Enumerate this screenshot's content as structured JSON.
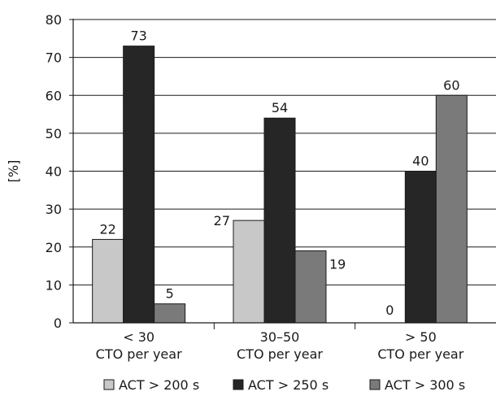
{
  "chart_data": {
    "type": "bar",
    "categories": [
      [
        "< 30",
        "CTO per year"
      ],
      [
        "30–50",
        "CTO per year"
      ],
      [
        "> 50",
        "CTO per year"
      ]
    ],
    "series": [
      {
        "name": "ACT > 200 s",
        "values": [
          22,
          27,
          0
        ],
        "color": "#c8c8c8"
      },
      {
        "name": "ACT > 250 s",
        "values": [
          73,
          54,
          40
        ],
        "color": "#262626"
      },
      {
        "name": "ACT > 300 s",
        "values": [
          5,
          19,
          60
        ],
        "color": "#7a7a7a"
      }
    ],
    "ylabel": "[%]",
    "ylim": [
      0,
      80
    ],
    "yticks": [
      0,
      10,
      20,
      30,
      40,
      50,
      60,
      70,
      80
    ],
    "grid": true,
    "legend": "bottom"
  }
}
